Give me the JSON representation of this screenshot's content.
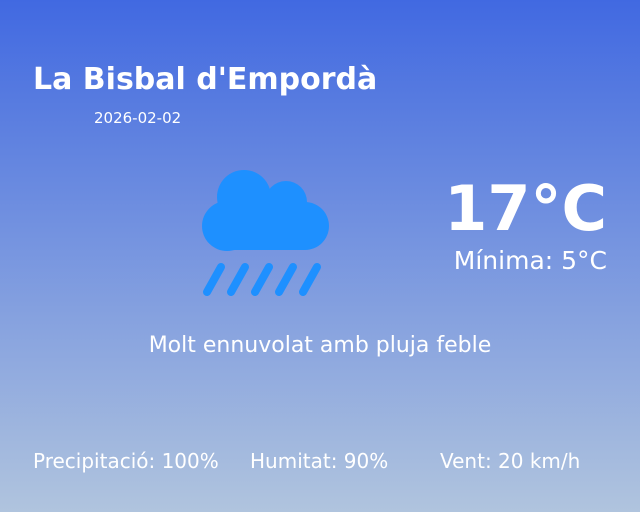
{
  "location": {
    "city": "La Bisbal d'Empordà",
    "date": "2026-02-02"
  },
  "weather": {
    "icon": "cloud-rain-icon",
    "icon_color": "#1e90ff",
    "temperature": "17°C",
    "minimum": "Mínima: 5°C",
    "description": "Molt ennuvolat amb pluja feble"
  },
  "stats": {
    "precipitation": "Precipitació: 100%",
    "humidity": "Humitat: 90%",
    "wind": "Vent: 20 km/h"
  },
  "colors": {
    "gradient_top": "#4169e1",
    "gradient_bottom": "#b0c4de"
  }
}
